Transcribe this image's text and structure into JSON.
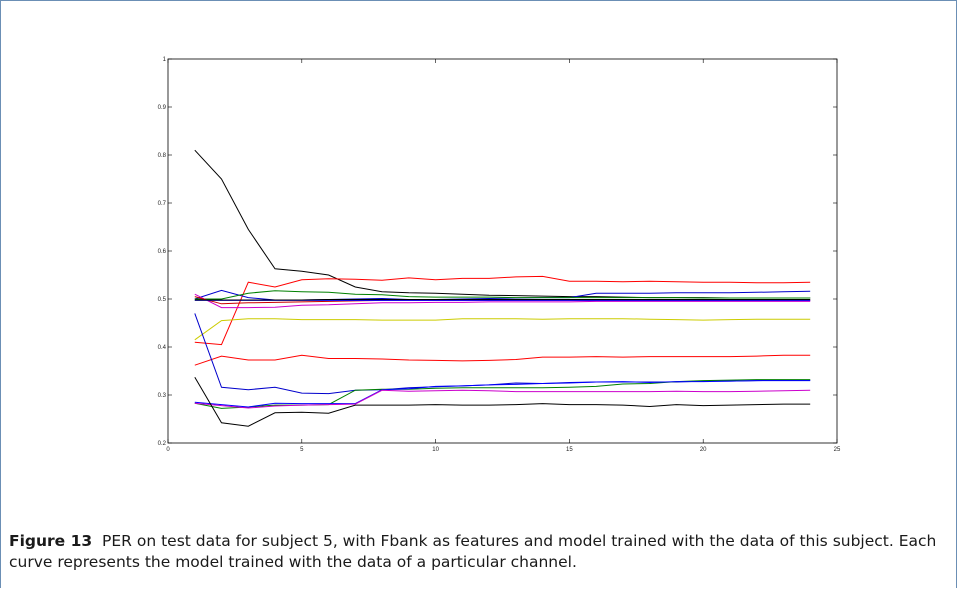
{
  "caption": {
    "label": "Figure 13",
    "text": "PER on test data for subject 5, with Fbank as features and model trained with the data of this subject. Each curve represents the model trained with the data of a particular channel."
  },
  "chart_data": {
    "type": "line",
    "title": "",
    "xlabel": "",
    "ylabel": "",
    "xlim": [
      0,
      25
    ],
    "ylim": [
      0.2,
      1
    ],
    "xticks": [
      0,
      5,
      10,
      15,
      20,
      25
    ],
    "yticks": [
      0.2,
      0.3,
      0.4,
      0.5,
      0.6,
      0.7,
      0.8,
      0.9,
      1
    ],
    "xtick_labels": [
      "0",
      "5",
      "10",
      "15",
      "20",
      "25"
    ],
    "ytick_labels": [
      "0.2",
      "0.3",
      "0.4",
      "0.5",
      "0.6",
      "0.7",
      "0.8",
      "0.9",
      "1"
    ],
    "grid": false,
    "x": [
      1,
      2,
      3,
      4,
      5,
      6,
      7,
      8,
      9,
      10,
      11,
      12,
      13,
      14,
      15,
      16,
      17,
      18,
      19,
      20,
      21,
      22,
      23,
      24
    ],
    "series": [
      {
        "color": "#000000",
        "values": [
          0.81,
          0.75,
          0.645,
          0.563,
          0.558,
          0.55,
          0.525,
          0.515,
          0.513,
          0.512,
          0.51,
          0.508,
          0.507,
          0.506,
          0.505,
          0.505,
          0.504,
          0.503,
          0.503,
          0.503,
          0.502,
          0.502,
          0.502,
          0.502
        ]
      },
      {
        "color": "#ff0000",
        "values": [
          0.41,
          0.405,
          0.535,
          0.525,
          0.54,
          0.542,
          0.541,
          0.539,
          0.544,
          0.54,
          0.543,
          0.543,
          0.546,
          0.547,
          0.537,
          0.537,
          0.536,
          0.537,
          0.536,
          0.535,
          0.535,
          0.534,
          0.534,
          0.535
        ]
      },
      {
        "color": "#0000cc",
        "values": [
          0.5,
          0.518,
          0.503,
          0.498,
          0.498,
          0.499,
          0.5,
          0.501,
          0.499,
          0.499,
          0.5,
          0.501,
          0.502,
          0.503,
          0.503,
          0.512,
          0.512,
          0.512,
          0.513,
          0.513,
          0.513,
          0.514,
          0.515,
          0.516
        ]
      },
      {
        "color": "#008000",
        "values": [
          0.5,
          0.5,
          0.512,
          0.517,
          0.515,
          0.514,
          0.51,
          0.509,
          0.505,
          0.504,
          0.504,
          0.504,
          0.503,
          0.503,
          0.503,
          0.503,
          0.503,
          0.503,
          0.503,
          0.502,
          0.502,
          0.502,
          0.502,
          0.502
        ]
      },
      {
        "color": "#cc00cc",
        "values": [
          0.51,
          0.482,
          0.482,
          0.483,
          0.487,
          0.488,
          0.49,
          0.492,
          0.492,
          0.493,
          0.493,
          0.494,
          0.494,
          0.494,
          0.494,
          0.495,
          0.495,
          0.495,
          0.495,
          0.495,
          0.495,
          0.495,
          0.495,
          0.495
        ]
      },
      {
        "color": "#cccc00",
        "values": [
          0.415,
          0.455,
          0.459,
          0.459,
          0.457,
          0.457,
          0.457,
          0.456,
          0.456,
          0.456,
          0.459,
          0.459,
          0.459,
          0.458,
          0.459,
          0.459,
          0.459,
          0.458,
          0.457,
          0.456,
          0.457,
          0.458,
          0.458,
          0.458
        ]
      },
      {
        "color": "#cc0000",
        "values": [
          0.505,
          0.49,
          0.492,
          0.493,
          0.494,
          0.495,
          0.496,
          0.497,
          0.497,
          0.497,
          0.497,
          0.497,
          0.497,
          0.497,
          0.497,
          0.497,
          0.497,
          0.497,
          0.497,
          0.497,
          0.497,
          0.497,
          0.497,
          0.497
        ]
      },
      {
        "color": "#0000ff",
        "values": [
          0.497,
          0.497,
          0.497,
          0.497,
          0.497,
          0.497,
          0.497,
          0.497,
          0.497,
          0.497,
          0.497,
          0.497,
          0.497,
          0.497,
          0.497,
          0.497,
          0.497,
          0.497,
          0.497,
          0.497,
          0.497,
          0.497,
          0.497,
          0.497
        ]
      },
      {
        "color": "#000000",
        "values": [
          0.498,
          0.498,
          0.498,
          0.498,
          0.498,
          0.499,
          0.499,
          0.499,
          0.499,
          0.499,
          0.499,
          0.499,
          0.499,
          0.499,
          0.499,
          0.499,
          0.499,
          0.499,
          0.499,
          0.499,
          0.499,
          0.499,
          0.499,
          0.499
        ]
      },
      {
        "color": "#ff0000",
        "values": [
          0.362,
          0.381,
          0.373,
          0.373,
          0.383,
          0.376,
          0.376,
          0.375,
          0.373,
          0.372,
          0.371,
          0.372,
          0.374,
          0.379,
          0.379,
          0.38,
          0.379,
          0.38,
          0.38,
          0.38,
          0.38,
          0.381,
          0.383,
          0.383
        ]
      },
      {
        "color": "#0000cc",
        "values": [
          0.47,
          0.316,
          0.311,
          0.316,
          0.304,
          0.303,
          0.31,
          0.311,
          0.315,
          0.317,
          0.319,
          0.321,
          0.325,
          0.324,
          0.326,
          0.327,
          0.327,
          0.327,
          0.327,
          0.329,
          0.329,
          0.33,
          0.331,
          0.331
        ]
      },
      {
        "color": "#008000",
        "values": [
          0.283,
          0.272,
          0.275,
          0.279,
          0.279,
          0.28,
          0.31,
          0.312,
          0.312,
          0.314,
          0.315,
          0.315,
          0.315,
          0.315,
          0.316,
          0.318,
          0.323,
          0.324,
          0.328,
          0.33,
          0.331,
          0.332,
          0.332,
          0.332
        ]
      },
      {
        "color": "#0000ff",
        "values": [
          0.285,
          0.28,
          0.275,
          0.283,
          0.282,
          0.282,
          0.282,
          0.311,
          0.313,
          0.318,
          0.319,
          0.321,
          0.322,
          0.324,
          0.325,
          0.327,
          0.328,
          0.326,
          0.328,
          0.328,
          0.329,
          0.33,
          0.33,
          0.33
        ]
      },
      {
        "color": "#cc00cc",
        "values": [
          0.283,
          0.278,
          0.273,
          0.277,
          0.279,
          0.28,
          0.281,
          0.31,
          0.308,
          0.309,
          0.31,
          0.309,
          0.307,
          0.307,
          0.307,
          0.307,
          0.307,
          0.307,
          0.308,
          0.307,
          0.307,
          0.308,
          0.309,
          0.31
        ]
      },
      {
        "color": "#000000",
        "values": [
          0.337,
          0.242,
          0.235,
          0.263,
          0.264,
          0.262,
          0.279,
          0.279,
          0.279,
          0.28,
          0.279,
          0.279,
          0.28,
          0.282,
          0.28,
          0.28,
          0.279,
          0.276,
          0.28,
          0.278,
          0.279,
          0.28,
          0.281,
          0.281
        ]
      }
    ]
  }
}
